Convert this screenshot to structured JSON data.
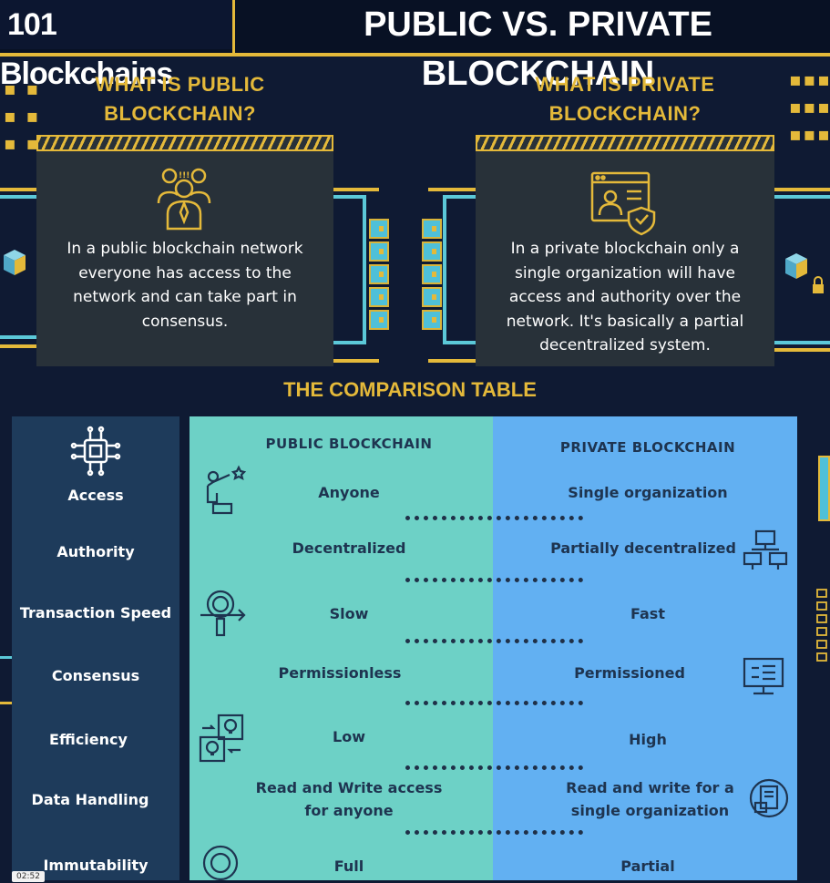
{
  "header": {
    "brand": "101 Blockchains",
    "title": "PUBLIC VS. PRIVATE BLOCKCHAIN"
  },
  "public_section": {
    "heading_line1": "WHAT IS PUBLIC",
    "heading_line2": "BLOCKCHAIN?",
    "icon": "group-of-people-icon",
    "text": "In a public blockchain network everyone has access to the network and can take part in consensus."
  },
  "private_section": {
    "heading_line1": "WHAT IS PRIVATE",
    "heading_line2": "BLOCKCHAIN?",
    "icon": "user-profile-shield-icon",
    "text": "In a private blockchain only a single organization will have access and authority over the network. It's basically a partial decentralized system."
  },
  "comparison": {
    "title": "THE COMPARISON TABLE",
    "public_header": "PUBLIC BLOCKCHAIN",
    "private_header": "PRIVATE BLOCKCHAIN",
    "rows": [
      {
        "label": "Access",
        "public": "Anyone",
        "private": "Single organization"
      },
      {
        "label": "Authority",
        "public": "Decentralized",
        "private": "Partially decentralized"
      },
      {
        "label": "Transaction Speed",
        "public": "Slow",
        "private": "Fast"
      },
      {
        "label": "Consensus",
        "public": "Permissionless",
        "private": "Permissioned"
      },
      {
        "label": "Efficiency",
        "public": "Low",
        "private": "High"
      },
      {
        "label": "Data Handling",
        "public": "Read and Write access for anyone",
        "private": "Read and write for a single organization"
      },
      {
        "label": "Immutability",
        "public": "Full",
        "private": "Partial"
      }
    ]
  },
  "video": {
    "timestamp": "02:52"
  },
  "colors": {
    "background": "#0f1a33",
    "accent_gold": "#e4b93a",
    "public_column": "#6dd1c6",
    "private_column": "#62b0f2",
    "label_column": "#1e3b5b"
  }
}
